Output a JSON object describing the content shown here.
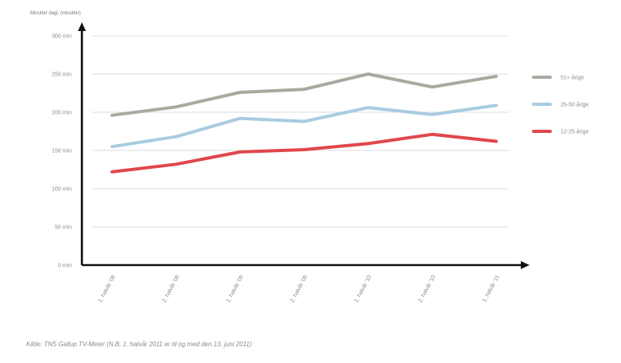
{
  "chart_data": {
    "type": "line",
    "title": "",
    "ylabel": "",
    "ylabel_unit": "Minutter dagl. (minutter)",
    "ylim": [
      0,
      300
    ],
    "yticks": [
      {
        "value": 0,
        "label": "0 min."
      },
      {
        "value": 50,
        "label": "50 min."
      },
      {
        "value": 100,
        "label": "100 min."
      },
      {
        "value": 150,
        "label": "150 min."
      },
      {
        "value": 200,
        "label": "200 min."
      },
      {
        "value": 250,
        "label": "250 min."
      },
      {
        "value": 300,
        "label": "300 min."
      }
    ],
    "categories": [
      "1. halvår '08",
      "2. halvår '08",
      "1. halvår '09",
      "2. halvår '09",
      "1. halvår '10",
      "2. halvår '10",
      "1. halvår '11"
    ],
    "series": [
      {
        "name": "51+ årige",
        "color": "#a9a9a0",
        "values": [
          196,
          207,
          226,
          230,
          250,
          233,
          247
        ]
      },
      {
        "name": "26-50 årige",
        "color": "#a8cce0",
        "values": [
          155,
          168,
          192,
          188,
          206,
          197,
          209
        ]
      },
      {
        "name": "12-25 årige",
        "color": "#e0474c",
        "values": [
          122,
          132,
          148,
          151,
          159,
          171,
          162
        ]
      }
    ],
    "grid": true,
    "legend_position": "right"
  },
  "source_note": "Kilde: TNS Gallup TV-Meter (N.B. 1. halvår 2011 er til og med den 13. juni 2011)"
}
